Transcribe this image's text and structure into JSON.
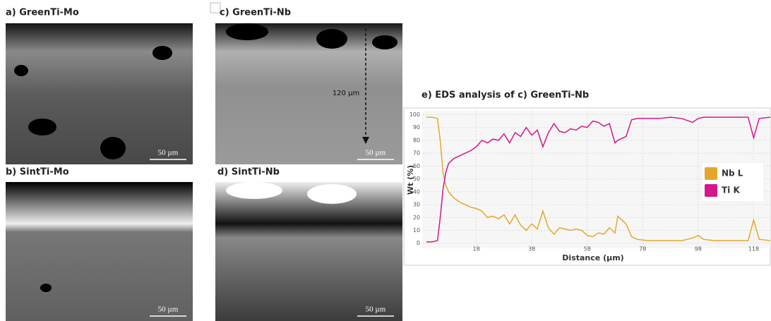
{
  "panels": [
    {
      "label": "a) GreenTi-Mo",
      "scale_bar": "50 µm"
    },
    {
      "label": "b) SintTi-Mo",
      "scale_bar": "50 µm"
    },
    {
      "label": "c) GreenTi-Nb",
      "scale_bar": "50 µm",
      "annotation": "120 µm"
    },
    {
      "label": "d) SintTi-Nb",
      "scale_bar": "50 µm"
    }
  ],
  "chart_data": {
    "type": "line",
    "title": "e) EDS analysis of c) GreenTi-Nb",
    "x_label": "Distance (µm)",
    "y_label": "Wt (%)",
    "x": [
      0,
      2,
      4,
      5,
      6,
      7,
      8,
      10,
      12,
      14,
      16,
      18,
      20,
      22,
      24,
      26,
      28,
      30,
      32,
      34,
      36,
      38,
      40,
      42,
      44,
      46,
      48,
      50,
      52,
      54,
      56,
      58,
      60,
      62,
      64,
      66,
      68,
      69,
      70,
      72,
      74,
      76,
      80,
      84,
      88,
      92,
      96,
      98,
      100,
      104,
      108,
      112,
      116,
      118,
      120,
      124
    ],
    "series": [
      {
        "name": "Nb L",
        "color": "#e3a82b",
        "values": [
          98,
          98,
          97,
          80,
          55,
          45,
          40,
          35,
          32,
          30,
          28,
          27,
          25,
          20,
          21,
          19,
          22,
          15,
          22,
          14,
          10,
          15,
          11,
          25,
          12,
          7,
          12,
          11,
          10,
          11,
          10,
          6,
          5,
          8,
          7,
          12,
          8,
          21,
          19,
          15,
          5,
          3,
          2,
          2,
          2,
          2,
          4,
          6,
          3,
          2,
          2,
          2,
          2,
          18,
          3,
          2
        ]
      },
      {
        "name": "Ti K",
        "color": "#d6168b",
        "values": [
          1,
          1,
          2,
          20,
          42,
          55,
          62,
          66,
          68,
          70,
          72,
          75,
          80,
          78,
          81,
          80,
          85,
          78,
          86,
          83,
          90,
          84,
          88,
          75,
          86,
          93,
          87,
          86,
          89,
          88,
          91,
          90,
          95,
          94,
          91,
          93,
          78,
          80,
          81,
          83,
          96,
          97,
          97,
          97,
          98,
          97,
          94,
          97,
          98,
          98,
          98,
          98,
          98,
          82,
          97,
          98
        ]
      }
    ],
    "xlim": [
      -1.5,
      124
    ],
    "xticks": [
      18,
      38,
      58,
      78,
      98,
      118
    ],
    "ylim": [
      -4,
      103
    ],
    "yticks": [
      0,
      10,
      20,
      30,
      40,
      50,
      60,
      70,
      80,
      90,
      100
    ],
    "grid": true,
    "legend": "right"
  }
}
